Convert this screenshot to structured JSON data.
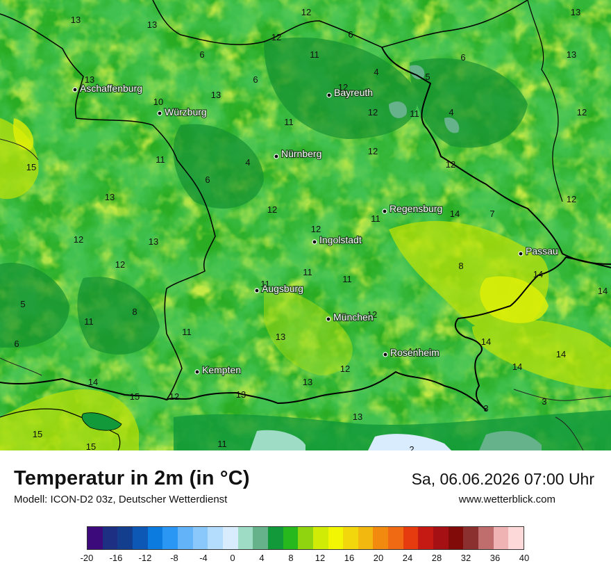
{
  "title": "Temperatur in 2m (in °C)",
  "model": "Modell: ICON-D2 03z, Deutscher Wetterdienst",
  "datetime": "Sa, 06.06.2026 07:00 Uhr",
  "site": "www.wetterblick.com",
  "cities": [
    {
      "name": "Aschaffenburg"
    },
    {
      "name": "Würzburg"
    },
    {
      "name": "Bayreuth"
    },
    {
      "name": "Nürnberg"
    },
    {
      "name": "Regensburg"
    },
    {
      "name": "Ingolstadt"
    },
    {
      "name": "Passau"
    },
    {
      "name": "Augsburg"
    },
    {
      "name": "München"
    },
    {
      "name": "Rosenheim"
    },
    {
      "name": "Kempten"
    }
  ],
  "values": [
    "12",
    "13",
    "13",
    "13",
    "12",
    "6",
    "13",
    "6",
    "11",
    "6",
    "4",
    "5",
    "13",
    "6",
    "12",
    "10",
    "13",
    "12",
    "12",
    "11",
    "4",
    "11",
    "12",
    "15",
    "11",
    "11",
    "4",
    "12",
    "13",
    "6",
    "12",
    "14",
    "7",
    "12",
    "11",
    "13",
    "12",
    "12",
    "8",
    "14",
    "11",
    "11",
    "14",
    "5",
    "12",
    "11",
    "11",
    "8",
    "6",
    "13",
    "11",
    "14",
    "14",
    "12",
    "14",
    "14",
    "14",
    "13",
    "15",
    "12",
    "13",
    "3",
    "3",
    "15",
    "13",
    "15",
    "11",
    "2"
  ],
  "legend": {
    "ticks": [
      "-20",
      "-16",
      "-12",
      "-8",
      "-4",
      "0",
      "4",
      "8",
      "12",
      "16",
      "20",
      "24",
      "28",
      "32",
      "36",
      "40"
    ],
    "colors": [
      "#3d0a7c",
      "#1c2f83",
      "#133e8e",
      "#0d58b4",
      "#0b7be0",
      "#2b97f4",
      "#63b3f8",
      "#8ac7fb",
      "#b4dcfc",
      "#d9ecfd",
      "#9fdcc6",
      "#66b28b",
      "#11993a",
      "#27b81d",
      "#8fd40f",
      "#d0ec06",
      "#f2f603",
      "#f2d70c",
      "#f3b80f",
      "#f28a0f",
      "#ef6a12",
      "#e63b0e",
      "#c41a13",
      "#a51015",
      "#800b08",
      "#8b2f2f",
      "#c06d6d",
      "#f0b3b3",
      "#fdd9d9"
    ]
  }
}
